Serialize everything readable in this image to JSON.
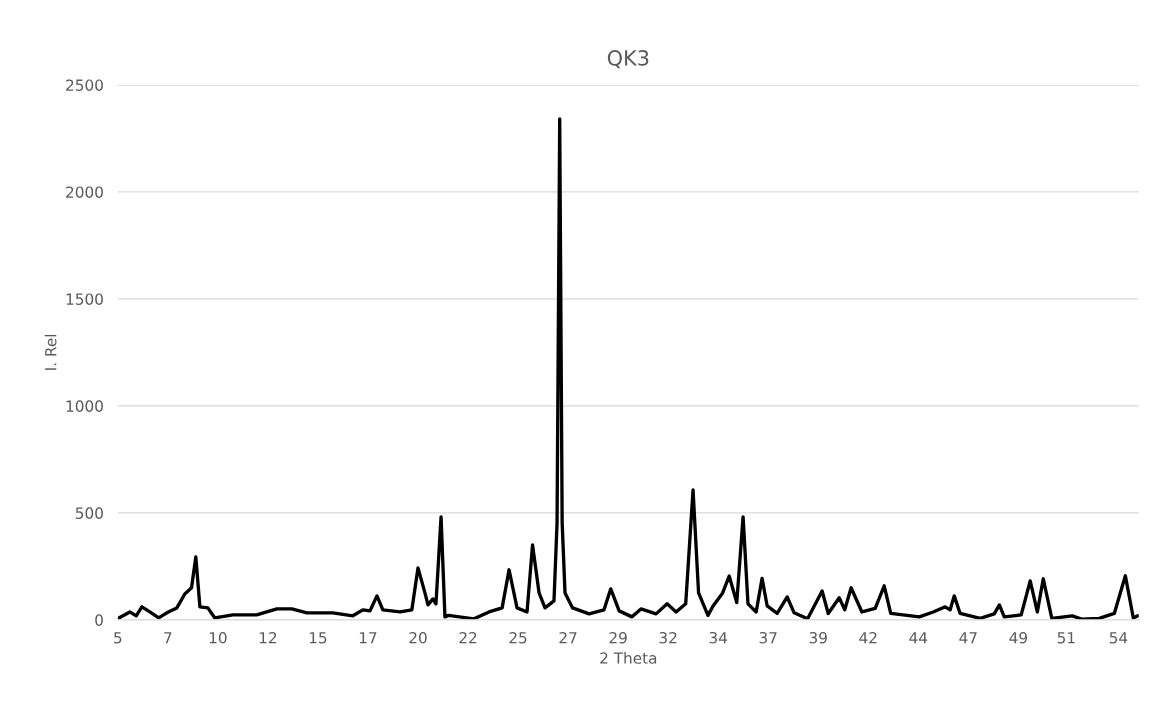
{
  "chart_data": {
    "type": "line",
    "title": "QK3",
    "xlabel": "2 Theta",
    "ylabel": "I. Rel",
    "xlim": [
      5,
      55
    ],
    "ylim": [
      0,
      2500
    ],
    "yticks": [
      0,
      500,
      1000,
      1500,
      2000,
      2500
    ],
    "xticks": [
      5,
      {
        "value": 7.45,
        "label": "7"
      },
      {
        "value": 9.9,
        "label": "10"
      },
      {
        "value": 12.35,
        "label": "12"
      },
      {
        "value": 14.8,
        "label": "15"
      },
      {
        "value": 17.25,
        "label": "17"
      },
      {
        "value": 19.7,
        "label": "20"
      },
      {
        "value": 22.15,
        "label": "22"
      },
      {
        "value": 24.6,
        "label": "25"
      },
      {
        "value": 27.05,
        "label": "27"
      },
      {
        "value": 29.5,
        "label": "29"
      },
      {
        "value": 31.95,
        "label": "32"
      },
      {
        "value": 34.4,
        "label": "34"
      },
      {
        "value": 36.85,
        "label": "37"
      },
      {
        "value": 39.3,
        "label": "39"
      },
      {
        "value": 41.75,
        "label": "42"
      },
      {
        "value": 44.2,
        "label": "44"
      },
      {
        "value": 46.65,
        "label": "47"
      },
      {
        "value": 49.1,
        "label": "49"
      },
      {
        "value": 51.45,
        "label": "51"
      },
      54
    ],
    "grid": "y",
    "series": [
      {
        "color": "#000000",
        "x": [
          5.05,
          5.59,
          5.9,
          6.18,
          6.57,
          7.0,
          7.4,
          7.89,
          8.28,
          8.61,
          8.82,
          9.02,
          9.41,
          9.75,
          10.63,
          11.8,
          12.79,
          13.52,
          14.26,
          15.53,
          16.51,
          17.0,
          17.35,
          17.69,
          17.98,
          18.82,
          19.4,
          19.7,
          20.04,
          20.19,
          20.43,
          20.58,
          20.83,
          21.02,
          21.19,
          22.44,
          23.18,
          23.82,
          24.16,
          24.55,
          25.04,
          25.31,
          25.63,
          25.92,
          26.36,
          26.51,
          26.64,
          26.76,
          26.9,
          27.27,
          28.08,
          28.81,
          29.14,
          29.55,
          30.18,
          30.62,
          31.36,
          31.9,
          32.34,
          32.81,
          33.17,
          33.44,
          33.9,
          34.15,
          34.62,
          34.94,
          35.31,
          35.62,
          35.86,
          36.26,
          36.55,
          36.8,
          37.29,
          37.78,
          38.12,
          38.78,
          39.49,
          39.79,
          40.33,
          40.6,
          40.91,
          41.44,
          42.09,
          42.53,
          42.85,
          44.25,
          44.93,
          45.52,
          45.76,
          45.96,
          46.25,
          47.23,
          47.92,
          48.17,
          48.41,
          49.24,
          49.68,
          50.03,
          50.32,
          50.74,
          51.74,
          52.23,
          53.06,
          53.8,
          54.34,
          54.73,
          54.95
        ],
        "values": [
          9,
          37,
          19,
          61,
          37,
          9,
          33,
          56,
          121,
          150,
          294,
          61,
          56,
          9,
          23,
          23,
          51,
          51,
          33,
          33,
          19,
          47,
          42,
          112,
          47,
          37,
          47,
          243,
          126,
          70,
          98,
          75,
          481,
          14,
          21,
          5,
          37,
          56,
          234,
          56,
          37,
          350,
          126,
          56,
          89,
          453,
          2341,
          453,
          126,
          56,
          28,
          47,
          145,
          42,
          14,
          51,
          28,
          75,
          37,
          75,
          607,
          126,
          21,
          65,
          126,
          205,
          81,
          481,
          75,
          37,
          194,
          65,
          30,
          107,
          33,
          5,
          135,
          30,
          103,
          47,
          150,
          37,
          54,
          159,
          30,
          14,
          37,
          61,
          47,
          112,
          30,
          7,
          28,
          70,
          14,
          23,
          182,
          37,
          192,
          7,
          19,
          3,
          7,
          30,
          206,
          9,
          19
        ]
      }
    ]
  }
}
